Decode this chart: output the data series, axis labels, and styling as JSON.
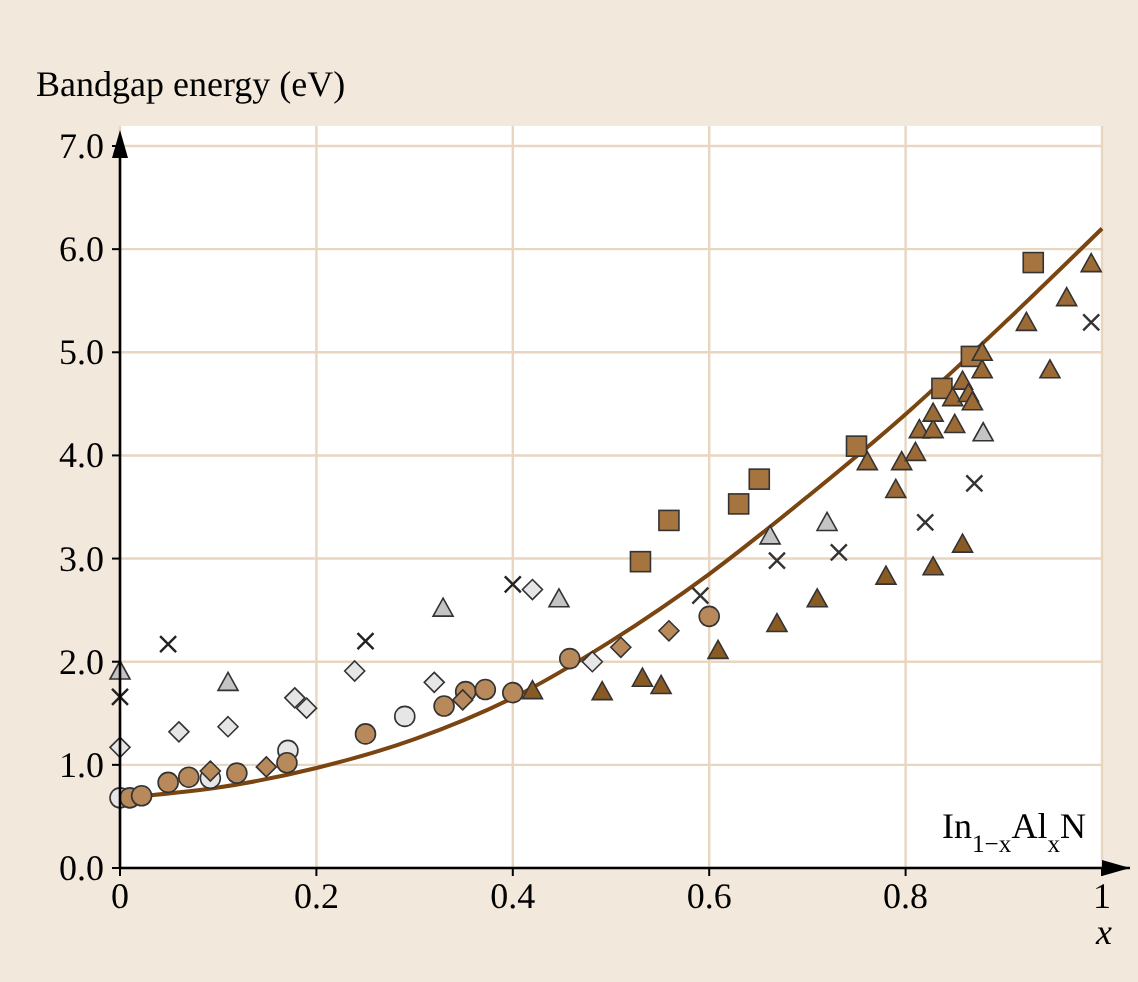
{
  "chart_data": {
    "type": "scatter",
    "ylabel": "Bandgap energy (eV)",
    "xlabel": "x",
    "annotations": [
      "In$_{1−x}$Al$_{x}$N"
    ],
    "xlim": [
      0,
      1
    ],
    "ylim": [
      0,
      7
    ],
    "xticks": [
      0,
      0.2,
      0.4,
      0.6,
      0.8,
      1
    ],
    "yticks": [
      {
        "value": 0,
        "label": "0.0"
      },
      {
        "value": 1,
        "label": "1.0"
      },
      {
        "value": 2,
        "label": "2.0"
      },
      {
        "value": 3,
        "label": "3.0"
      },
      {
        "value": 4,
        "label": "4.0"
      },
      {
        "value": 5,
        "label": "5.0"
      },
      {
        "value": 6,
        "label": "6.0"
      },
      {
        "value": 7,
        "label": "7.0"
      }
    ],
    "grid": true,
    "series": [
      {
        "type": "line",
        "color": "#7a4510",
        "marker": "none",
        "x": [
          0,
          0.1,
          0.2,
          0.3,
          0.4,
          0.5,
          0.6,
          0.7,
          0.8,
          0.9,
          1.0
        ],
        "values": [
          0.68,
          0.78,
          0.97,
          1.25,
          1.65,
          2.2,
          2.85,
          3.6,
          4.4,
          5.28,
          6.2
        ]
      },
      {
        "marker": "circle",
        "color": "#e6e6e6",
        "x": [
          0,
          0.092,
          0.171,
          0.29
        ],
        "values": [
          0.68,
          0.87,
          1.14,
          1.47
        ]
      },
      {
        "marker": "circle",
        "color": "#b8895a",
        "x": [
          0.01,
          0.022,
          0.049,
          0.07,
          0.119,
          0.17,
          0.25,
          0.33,
          0.352,
          0.372,
          0.4,
          0.458,
          0.6
        ],
        "values": [
          0.68,
          0.7,
          0.83,
          0.88,
          0.92,
          1.02,
          1.3,
          1.57,
          1.71,
          1.73,
          1.7,
          2.03,
          2.44
        ]
      },
      {
        "marker": "diamond",
        "color": "#e6e6e6",
        "x": [
          0,
          0.06,
          0.11,
          0.178,
          0.19,
          0.239,
          0.32,
          0.42,
          0.481
        ],
        "values": [
          1.17,
          1.32,
          1.37,
          1.65,
          1.55,
          1.91,
          1.8,
          2.7,
          2.0
        ]
      },
      {
        "marker": "diamond",
        "color": "#b8895a",
        "x": [
          0.092,
          0.149,
          0.349,
          0.51,
          0.559
        ],
        "values": [
          0.94,
          0.98,
          1.63,
          2.14,
          2.3
        ]
      },
      {
        "marker": "cross",
        "color": "#222222",
        "x": [
          0,
          0.049,
          0.25,
          0.4
        ],
        "values": [
          1.66,
          2.17,
          2.2,
          2.75
        ]
      },
      {
        "marker": "cross",
        "color": "#333333",
        "x": [
          0.591,
          0.669,
          0.732,
          0.82,
          0.87,
          0.989
        ],
        "values": [
          2.64,
          2.98,
          3.06,
          3.35,
          3.73,
          5.29
        ]
      },
      {
        "marker": "triangle",
        "color": "#c4c4c4",
        "x": [
          0,
          0.11,
          0.329,
          0.447,
          0.662,
          0.72,
          0.879
        ],
        "values": [
          1.91,
          1.8,
          2.52,
          2.61,
          3.22,
          3.35,
          4.22
        ]
      },
      {
        "marker": "triangle",
        "color": "#8a5a25",
        "x": [
          0.42,
          0.491,
          0.532,
          0.551,
          0.609,
          0.669,
          0.71,
          0.78,
          0.828,
          0.858
        ],
        "values": [
          1.72,
          1.71,
          1.84,
          1.77,
          2.11,
          2.37,
          2.61,
          2.83,
          2.92,
          3.14
        ]
      },
      {
        "marker": "square",
        "color": "#a6743f",
        "x": [
          0.53,
          0.559,
          0.63,
          0.651,
          0.75,
          0.837,
          0.867,
          0.93
        ],
        "values": [
          2.97,
          3.37,
          3.53,
          3.77,
          4.09,
          4.65,
          4.96,
          5.87
        ]
      },
      {
        "marker": "triangle",
        "color": "#9c6a35",
        "x": [
          0.761,
          0.79,
          0.796,
          0.81,
          0.814,
          0.828,
          0.828,
          0.848,
          0.85,
          0.858,
          0.864,
          0.868,
          0.878,
          0.878,
          0.923,
          0.947,
          0.964,
          0.989
        ],
        "values": [
          3.94,
          3.67,
          3.94,
          4.03,
          4.25,
          4.25,
          4.41,
          4.56,
          4.3,
          4.72,
          4.6,
          4.52,
          4.83,
          5.0,
          5.29,
          4.83,
          5.53,
          5.86
        ]
      }
    ]
  }
}
